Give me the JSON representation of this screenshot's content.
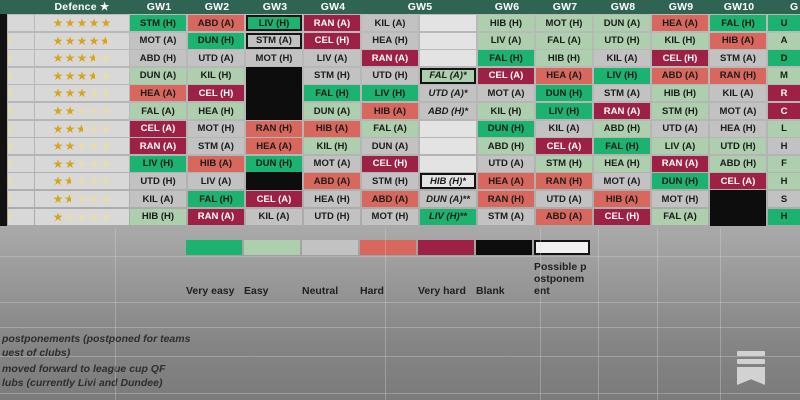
{
  "header": {
    "defence_label": "Defence ★",
    "gw_labels": [
      "GW1",
      "GW2",
      "GW3",
      "GW4",
      "GW5",
      "GW6",
      "GW7",
      "GW8",
      "GW9",
      "GW10"
    ],
    "next_gw_partial": "G"
  },
  "difficulty_colors": {
    "very_easy": "#1cb26f",
    "easy": "#adcfad",
    "neutral": "#c2c2c2",
    "hard": "#d8685e",
    "very_hard": "#9c2145",
    "blank": "#0d0d0d",
    "empty": "#e3e3e3",
    "postponement": "#f1f1f1"
  },
  "rows": [
    {
      "stars": 5,
      "cells": [
        {
          "t": "STM (H)",
          "d": "ve"
        },
        {
          "t": "ABD (A)",
          "d": "h"
        },
        {
          "t": "LIV (H)",
          "d": "ve",
          "b": 1
        },
        {
          "t": "RAN (A)",
          "d": "vh"
        },
        {
          "t": "KIL (A)",
          "d": "n"
        },
        {
          "t": "",
          "d": "em"
        },
        {
          "t": "HIB (H)",
          "d": "e"
        },
        {
          "t": "MOT (H)",
          "d": "e"
        },
        {
          "t": "DUN (A)",
          "d": "e"
        },
        {
          "t": "HEA (A)",
          "d": "h"
        },
        {
          "t": "FAL (H)",
          "d": "ve"
        },
        {
          "t": "U",
          "d": "ve"
        }
      ]
    },
    {
      "stars": 4.5,
      "cells": [
        {
          "t": "MOT (A)",
          "d": "n"
        },
        {
          "t": "DUN (H)",
          "d": "ve"
        },
        {
          "t": "STM (A)",
          "d": "n",
          "b": 1
        },
        {
          "t": "CEL (H)",
          "d": "vh"
        },
        {
          "t": "HEA (H)",
          "d": "n"
        },
        {
          "t": "",
          "d": "em"
        },
        {
          "t": "LIV (A)",
          "d": "e"
        },
        {
          "t": "FAL (A)",
          "d": "e"
        },
        {
          "t": "UTD (H)",
          "d": "e"
        },
        {
          "t": "KIL (H)",
          "d": "e"
        },
        {
          "t": "HIB (A)",
          "d": "h"
        },
        {
          "t": "A",
          "d": "e"
        }
      ]
    },
    {
      "stars": 3.5,
      "cells": [
        {
          "t": "ABD (H)",
          "d": "n"
        },
        {
          "t": "UTD (A)",
          "d": "n"
        },
        {
          "t": "MOT (H)",
          "d": "n"
        },
        {
          "t": "LIV (A)",
          "d": "n"
        },
        {
          "t": "RAN (A)",
          "d": "vh"
        },
        {
          "t": "",
          "d": "em"
        },
        {
          "t": "FAL (H)",
          "d": "ve"
        },
        {
          "t": "HIB (H)",
          "d": "e"
        },
        {
          "t": "KIL (A)",
          "d": "n"
        },
        {
          "t": "CEL (H)",
          "d": "vh"
        },
        {
          "t": "STM (A)",
          "d": "n"
        },
        {
          "t": "D",
          "d": "ve"
        }
      ]
    },
    {
      "stars": 3.5,
      "cells": [
        {
          "t": "DUN (A)",
          "d": "e"
        },
        {
          "t": "KIL (H)",
          "d": "e"
        },
        {
          "t": "",
          "d": "bk"
        },
        {
          "t": "STM (H)",
          "d": "n"
        },
        {
          "t": "UTD (H)",
          "d": "n"
        },
        {
          "t": "FAL (A)*",
          "d": "e",
          "b": 1,
          "i": 1
        },
        {
          "t": "CEL (A)",
          "d": "vh"
        },
        {
          "t": "HEA (A)",
          "d": "h"
        },
        {
          "t": "LIV (H)",
          "d": "ve"
        },
        {
          "t": "ABD (A)",
          "d": "h"
        },
        {
          "t": "RAN (H)",
          "d": "h"
        },
        {
          "t": "M",
          "d": "e"
        }
      ]
    },
    {
      "stars": 3,
      "cells": [
        {
          "t": "HEA (A)",
          "d": "h"
        },
        {
          "t": "CEL (H)",
          "d": "vh"
        },
        {
          "t": "",
          "d": "bk"
        },
        {
          "t": "FAL (H)",
          "d": "ve"
        },
        {
          "t": "LIV (H)",
          "d": "ve"
        },
        {
          "t": "UTD (A)*",
          "d": "n",
          "i": 1
        },
        {
          "t": "MOT (A)",
          "d": "n"
        },
        {
          "t": "DUN (H)",
          "d": "ve"
        },
        {
          "t": "STM (A)",
          "d": "n"
        },
        {
          "t": "HIB (H)",
          "d": "e"
        },
        {
          "t": "KIL (A)",
          "d": "n"
        },
        {
          "t": "R",
          "d": "vh"
        }
      ]
    },
    {
      "stars": 2,
      "cells": [
        {
          "t": "FAL (A)",
          "d": "e"
        },
        {
          "t": "HEA (H)",
          "d": "e"
        },
        {
          "t": "",
          "d": "bk"
        },
        {
          "t": "DUN (A)",
          "d": "e"
        },
        {
          "t": "HIB (A)",
          "d": "h"
        },
        {
          "t": "ABD (H)*",
          "d": "n",
          "i": 1
        },
        {
          "t": "KIL (H)",
          "d": "e"
        },
        {
          "t": "LIV (H)",
          "d": "ve"
        },
        {
          "t": "RAN (A)",
          "d": "vh"
        },
        {
          "t": "STM (H)",
          "d": "e"
        },
        {
          "t": "MOT (A)",
          "d": "n"
        },
        {
          "t": "C",
          "d": "vh"
        }
      ]
    },
    {
      "stars": 2.5,
      "cells": [
        {
          "t": "CEL (A)",
          "d": "vh"
        },
        {
          "t": "MOT (H)",
          "d": "n"
        },
        {
          "t": "RAN (H)",
          "d": "h"
        },
        {
          "t": "HIB (A)",
          "d": "h"
        },
        {
          "t": "FAL (A)",
          "d": "e"
        },
        {
          "t": "",
          "d": "em"
        },
        {
          "t": "DUN (H)",
          "d": "ve"
        },
        {
          "t": "KIL (A)",
          "d": "n"
        },
        {
          "t": "ABD (H)",
          "d": "e"
        },
        {
          "t": "UTD (A)",
          "d": "n"
        },
        {
          "t": "HEA (H)",
          "d": "n"
        },
        {
          "t": "L",
          "d": "e"
        }
      ]
    },
    {
      "stars": 2,
      "cells": [
        {
          "t": "RAN (A)",
          "d": "vh"
        },
        {
          "t": "STM (A)",
          "d": "n"
        },
        {
          "t": "HEA (A)",
          "d": "h"
        },
        {
          "t": "KIL (H)",
          "d": "e"
        },
        {
          "t": "DUN (A)",
          "d": "n"
        },
        {
          "t": "",
          "d": "em"
        },
        {
          "t": "ABD (H)",
          "d": "e"
        },
        {
          "t": "CEL (A)",
          "d": "vh"
        },
        {
          "t": "FAL (H)",
          "d": "ve"
        },
        {
          "t": "LIV (A)",
          "d": "e"
        },
        {
          "t": "UTD (H)",
          "d": "e"
        },
        {
          "t": "H",
          "d": "n"
        }
      ]
    },
    {
      "stars": 2,
      "cells": [
        {
          "t": "LIV (H)",
          "d": "ve"
        },
        {
          "t": "HIB (A)",
          "d": "h"
        },
        {
          "t": "DUN (H)",
          "d": "ve"
        },
        {
          "t": "MOT (A)",
          "d": "n"
        },
        {
          "t": "CEL (H)",
          "d": "vh"
        },
        {
          "t": "",
          "d": "em"
        },
        {
          "t": "UTD (A)",
          "d": "n"
        },
        {
          "t": "STM (H)",
          "d": "e"
        },
        {
          "t": "HEA (H)",
          "d": "e"
        },
        {
          "t": "RAN (A)",
          "d": "vh"
        },
        {
          "t": "ABD (H)",
          "d": "e"
        },
        {
          "t": "F",
          "d": "e"
        }
      ]
    },
    {
      "stars": 1.5,
      "cells": [
        {
          "t": "UTD (H)",
          "d": "n"
        },
        {
          "t": "LIV (A)",
          "d": "n"
        },
        {
          "t": "",
          "d": "bk"
        },
        {
          "t": "ABD (A)",
          "d": "h"
        },
        {
          "t": "STM (H)",
          "d": "n"
        },
        {
          "t": "HIB (H)*",
          "d": "em",
          "b": 1,
          "i": 1
        },
        {
          "t": "HEA (A)",
          "d": "h"
        },
        {
          "t": "RAN (H)",
          "d": "h"
        },
        {
          "t": "MOT (A)",
          "d": "n"
        },
        {
          "t": "DUN (H)",
          "d": "ve"
        },
        {
          "t": "CEL (A)",
          "d": "vh"
        },
        {
          "t": "H",
          "d": "e"
        }
      ]
    },
    {
      "stars": 1.5,
      "cells": [
        {
          "t": "KIL (A)",
          "d": "n"
        },
        {
          "t": "FAL (H)",
          "d": "ve"
        },
        {
          "t": "CEL (A)",
          "d": "vh"
        },
        {
          "t": "HEA (H)",
          "d": "n"
        },
        {
          "t": "ABD (A)",
          "d": "h"
        },
        {
          "t": "DUN (A)**",
          "d": "n",
          "i": 1
        },
        {
          "t": "RAN (H)",
          "d": "h"
        },
        {
          "t": "UTD (A)",
          "d": "n"
        },
        {
          "t": "HIB (A)",
          "d": "h"
        },
        {
          "t": "MOT (H)",
          "d": "n"
        },
        {
          "t": "",
          "d": "bk"
        },
        {
          "t": "S",
          "d": "n"
        }
      ]
    },
    {
      "stars": 1,
      "cells": [
        {
          "t": "HIB (H)",
          "d": "e"
        },
        {
          "t": "RAN (A)",
          "d": "vh"
        },
        {
          "t": "KIL (A)",
          "d": "n"
        },
        {
          "t": "UTD (H)",
          "d": "n"
        },
        {
          "t": "MOT (H)",
          "d": "n"
        },
        {
          "t": "LIV (H)**",
          "d": "ve",
          "i": 1
        },
        {
          "t": "STM (A)",
          "d": "n"
        },
        {
          "t": "ABD (A)",
          "d": "h"
        },
        {
          "t": "CEL (H)",
          "d": "vh"
        },
        {
          "t": "FAL (A)",
          "d": "e"
        },
        {
          "t": "",
          "d": "bk"
        },
        {
          "t": "H",
          "d": "ve"
        }
      ]
    }
  ],
  "legend": {
    "items": [
      {
        "label": "Very easy",
        "key": "very_easy"
      },
      {
        "label": "Easy",
        "key": "easy"
      },
      {
        "label": "Neutral",
        "key": "neutral"
      },
      {
        "label": "Hard",
        "key": "hard"
      },
      {
        "label": "Very hard",
        "key": "very_hard"
      },
      {
        "label": "Blank",
        "key": "blank"
      },
      {
        "label": "Possible postponement",
        "key": "postponement"
      }
    ]
  },
  "footnotes": {
    "l1": "postponements (postponed for teams",
    "l2": "uest of clubs)",
    "l3": "moved forward to league cup QF",
    "l4": "lubs (currently Livi and Dundee)"
  },
  "logo": {
    "name": "substack-bookmark"
  }
}
